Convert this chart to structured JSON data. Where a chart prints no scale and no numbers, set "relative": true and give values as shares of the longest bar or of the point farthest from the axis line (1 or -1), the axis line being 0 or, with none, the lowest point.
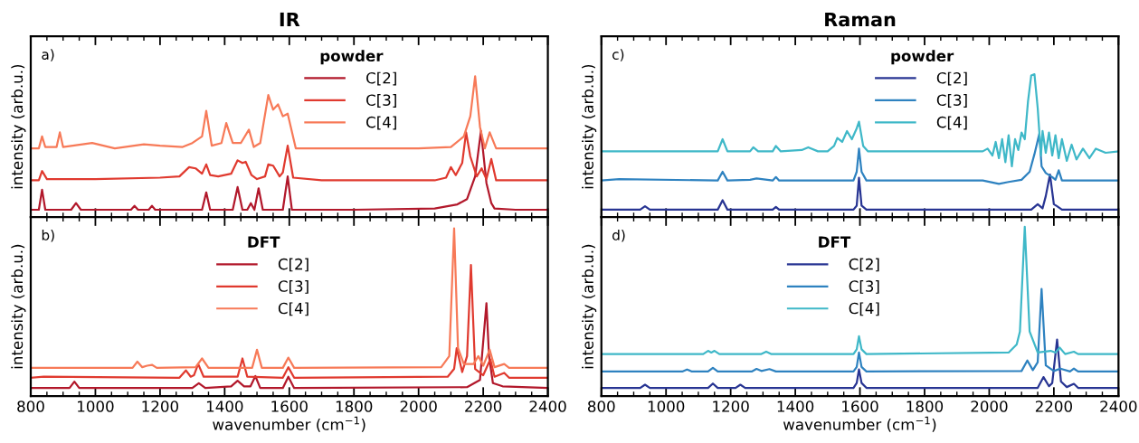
{
  "chart_data": [
    {
      "type": "line",
      "title": "IR",
      "ylabel": "intensity (arb.u.)",
      "relative": true,
      "legend": "top right",
      "legend_title": "powder",
      "annotations": [
        "a)"
      ],
      "xlim": [
        800,
        2400
      ],
      "xticks": [
        800,
        1000,
        1200,
        1400,
        1600,
        1800,
        2000,
        2200,
        2400
      ],
      "tick_labels": false,
      "line_style": "solid",
      "marker": "none",
      "series": [
        {
          "name": "C[2]",
          "color": "#b2182b",
          "x": [
            800,
            825,
            835,
            845,
            925,
            940,
            955,
            1110,
            1121,
            1132,
            1165,
            1175,
            1185,
            1330,
            1343,
            1355,
            1425,
            1440,
            1455,
            1470,
            1481,
            1492,
            1505,
            1518,
            1580,
            1595,
            1608,
            1800,
            2050,
            2120,
            2150,
            2175,
            2193,
            2210,
            2225,
            2235,
            2300,
            2400
          ],
          "values": [
            0.052,
            0.052,
            0.194,
            0.052,
            0.052,
            0.099,
            0.052,
            0.052,
            0.08,
            0.052,
            0.052,
            0.08,
            0.052,
            0.052,
            0.175,
            0.052,
            0.052,
            0.213,
            0.052,
            0.052,
            0.099,
            0.052,
            0.204,
            0.052,
            0.052,
            0.289,
            0.052,
            0.052,
            0.061,
            0.09,
            0.128,
            0.289,
            0.611,
            0.242,
            0.099,
            0.061,
            0.052,
            0.052
          ]
        },
        {
          "name": "C[3]",
          "color": "#e03a2f",
          "x": [
            800,
            825,
            835,
            850,
            1000,
            1200,
            1260,
            1290,
            1310,
            1330,
            1343,
            1355,
            1380,
            1420,
            1440,
            1455,
            1465,
            1483,
            1500,
            1525,
            1535,
            1550,
            1570,
            1580,
            1595,
            1612,
            1700,
            2050,
            2085,
            2100,
            2115,
            2135,
            2147,
            2160,
            2180,
            2195,
            2210,
            2225,
            2240,
            2400
          ],
          "values": [
            0.261,
            0.261,
            0.327,
            0.27,
            0.27,
            0.28,
            0.289,
            0.355,
            0.346,
            0.308,
            0.374,
            0.298,
            0.289,
            0.308,
            0.403,
            0.384,
            0.393,
            0.298,
            0.27,
            0.289,
            0.374,
            0.365,
            0.289,
            0.317,
            0.507,
            0.28,
            0.261,
            0.261,
            0.28,
            0.355,
            0.298,
            0.384,
            0.602,
            0.431,
            0.289,
            0.346,
            0.27,
            0.412,
            0.261,
            0.261
          ]
        },
        {
          "name": "C[4]",
          "color": "#f77a58",
          "x": [
            800,
            825,
            835,
            845,
            880,
            890,
            900,
            990,
            1060,
            1150,
            1200,
            1270,
            1300,
            1330,
            1343,
            1360,
            1390,
            1405,
            1425,
            1450,
            1475,
            1490,
            1510,
            1535,
            1550,
            1565,
            1580,
            1595,
            1620,
            1700,
            2000,
            2100,
            2140,
            2160,
            2175,
            2190,
            2205,
            2220,
            2240,
            2400
          ],
          "values": [
            0.488,
            0.488,
            0.573,
            0.498,
            0.498,
            0.602,
            0.498,
            0.526,
            0.488,
            0.517,
            0.507,
            0.498,
            0.526,
            0.573,
            0.754,
            0.507,
            0.526,
            0.668,
            0.526,
            0.526,
            0.621,
            0.498,
            0.526,
            0.867,
            0.763,
            0.801,
            0.716,
            0.735,
            0.488,
            0.488,
            0.488,
            0.498,
            0.573,
            0.716,
            1.0,
            0.64,
            0.488,
            0.602,
            0.488,
            0.488
          ]
        }
      ]
    },
    {
      "type": "line",
      "xlabel": "wavenumber (cm$^{−1}$)",
      "ylabel": "intensity (arb.u.)",
      "relative": true,
      "legend": "top",
      "legend_title": "DFT",
      "annotations": [
        "b)"
      ],
      "xlim": [
        800,
        2400
      ],
      "xticks": [
        800,
        1000,
        1200,
        1400,
        1600,
        1800,
        2000,
        2200,
        2400
      ],
      "tick_labels": "x",
      "line_style": "solid",
      "marker": "none",
      "series": [
        {
          "name": "C[2]",
          "color": "#b2182b",
          "x": [
            800,
            920,
            935,
            950,
            1300,
            1320,
            1340,
            1420,
            1440,
            1460,
            1480,
            1495,
            1510,
            1580,
            1597,
            1615,
            2150,
            2190,
            2210,
            2218,
            2230,
            2260,
            2400
          ],
          "values": [
            0.048,
            0.048,
            0.086,
            0.048,
            0.048,
            0.077,
            0.048,
            0.058,
            0.091,
            0.058,
            0.058,
            0.119,
            0.048,
            0.048,
            0.115,
            0.048,
            0.053,
            0.096,
            0.553,
            0.238,
            0.077,
            0.058,
            0.048
          ]
        },
        {
          "name": "C[3]",
          "color": "#e03a2f",
          "x": [
            800,
            840,
            1260,
            1280,
            1295,
            1305,
            1318,
            1335,
            1440,
            1455,
            1470,
            1580,
            1597,
            1615,
            2090,
            2110,
            2118,
            2135,
            2150,
            2162,
            2175,
            2200,
            2222,
            2235,
            2265,
            2280,
            2400
          ],
          "values": [
            0.109,
            0.115,
            0.109,
            0.153,
            0.115,
            0.124,
            0.191,
            0.115,
            0.115,
            0.224,
            0.115,
            0.109,
            0.172,
            0.109,
            0.115,
            0.162,
            0.286,
            0.143,
            0.238,
            0.781,
            0.162,
            0.124,
            0.219,
            0.115,
            0.138,
            0.109,
            0.109
          ]
        },
        {
          "name": "C[4]",
          "color": "#f77a58",
          "x": [
            800,
            1115,
            1130,
            1145,
            1160,
            1175,
            1190,
            1310,
            1330,
            1350,
            1485,
            1500,
            1515,
            1580,
            1597,
            1615,
            2070,
            2095,
            2110,
            2122,
            2140,
            2170,
            2185,
            2200,
            2212,
            2220,
            2235,
            2265,
            2280,
            2400
          ],
          "values": [
            0.168,
            0.168,
            0.205,
            0.172,
            0.181,
            0.186,
            0.168,
            0.172,
            0.224,
            0.168,
            0.168,
            0.276,
            0.168,
            0.168,
            0.229,
            0.168,
            0.172,
            0.238,
            1.0,
            0.286,
            0.191,
            0.191,
            0.238,
            0.181,
            0.238,
            0.276,
            0.172,
            0.191,
            0.168,
            0.168
          ]
        }
      ]
    },
    {
      "type": "line",
      "title": "Raman",
      "ylabel": "intensity (arb.u.)",
      "relative": true,
      "legend": "top right",
      "legend_title": "powder",
      "annotations": [
        "c)"
      ],
      "xlim": [
        800,
        2400
      ],
      "xticks": [
        800,
        1000,
        1200,
        1400,
        1600,
        1800,
        2000,
        2200,
        2400
      ],
      "tick_labels": false,
      "line_style": "solid",
      "marker": "none",
      "series": [
        {
          "name": "C[2]",
          "color": "#283593",
          "x": [
            800,
            920,
            935,
            950,
            1160,
            1175,
            1190,
            1330,
            1340,
            1350,
            1580,
            1590,
            1597,
            1605,
            1620,
            2130,
            2150,
            2165,
            2175,
            2188,
            2200,
            2210,
            2225,
            2400
          ],
          "values": [
            0.052,
            0.052,
            0.076,
            0.052,
            0.052,
            0.118,
            0.052,
            0.052,
            0.071,
            0.052,
            0.052,
            0.08,
            0.275,
            0.08,
            0.052,
            0.052,
            0.09,
            0.061,
            0.147,
            0.298,
            0.09,
            0.076,
            0.052,
            0.052
          ]
        },
        {
          "name": "C[3]",
          "color": "#2e82c0",
          "x": [
            800,
            855,
            1160,
            1175,
            1190,
            1260,
            1280,
            1330,
            1340,
            1350,
            1580,
            1590,
            1597,
            1605,
            1620,
            1980,
            2030,
            2060,
            2100,
            2125,
            2140,
            2155,
            2162,
            2175,
            2195,
            2205,
            2215,
            2225,
            2400
          ],
          "values": [
            0.256,
            0.265,
            0.256,
            0.317,
            0.256,
            0.261,
            0.27,
            0.256,
            0.28,
            0.256,
            0.256,
            0.317,
            0.479,
            0.317,
            0.256,
            0.256,
            0.232,
            0.246,
            0.261,
            0.317,
            0.441,
            0.583,
            0.355,
            0.308,
            0.28,
            0.261,
            0.327,
            0.256,
            0.256
          ]
        },
        {
          "name": "C[4]",
          "color": "#3fb8c8",
          "x": [
            800,
            1160,
            1175,
            1190,
            1260,
            1270,
            1285,
            1330,
            1340,
            1355,
            1420,
            1440,
            1470,
            1500,
            1520,
            1530,
            1545,
            1560,
            1575,
            1590,
            1597,
            1610,
            1625,
            1980,
            1995,
            2010,
            2020,
            2030,
            2040,
            2050,
            2060,
            2070,
            2080,
            2090,
            2100,
            2110,
            2120,
            2130,
            2140,
            2150,
            2160,
            2165,
            2175,
            2185,
            2195,
            2205,
            2215,
            2225,
            2240,
            2255,
            2270,
            2290,
            2310,
            2330,
            2360,
            2400
          ],
          "values": [
            0.46,
            0.46,
            0.545,
            0.46,
            0.46,
            0.488,
            0.46,
            0.46,
            0.498,
            0.46,
            0.469,
            0.488,
            0.46,
            0.46,
            0.498,
            0.554,
            0.526,
            0.602,
            0.545,
            0.621,
            0.668,
            0.498,
            0.46,
            0.46,
            0.479,
            0.431,
            0.526,
            0.412,
            0.545,
            0.384,
            0.573,
            0.355,
            0.545,
            0.469,
            0.592,
            0.545,
            0.81,
            0.991,
            1.0,
            0.763,
            0.431,
            0.602,
            0.45,
            0.592,
            0.431,
            0.573,
            0.412,
            0.545,
            0.393,
            0.507,
            0.403,
            0.479,
            0.412,
            0.479,
            0.45,
            0.46
          ]
        }
      ]
    },
    {
      "type": "line",
      "xlabel": "wavenumber (cm$^{−1}$)",
      "ylabel": "intensity (arb.u.)",
      "relative": true,
      "legend": "top",
      "legend_title": "DFT",
      "annotations": [
        "d)"
      ],
      "xlim": [
        800,
        2400
      ],
      "xticks": [
        800,
        1000,
        1200,
        1400,
        1600,
        1800,
        2000,
        2200,
        2400
      ],
      "tick_labels": "x",
      "line_style": "solid",
      "marker": "none",
      "series": [
        {
          "name": "C[2]",
          "color": "#283593",
          "x": [
            800,
            920,
            935,
            950,
            1130,
            1145,
            1160,
            1215,
            1230,
            1245,
            1580,
            1590,
            1597,
            1605,
            1620,
            2150,
            2168,
            2185,
            2195,
            2210,
            2222,
            2240,
            2262,
            2275,
            2400
          ],
          "values": [
            0.048,
            0.048,
            0.067,
            0.048,
            0.048,
            0.074,
            0.048,
            0.048,
            0.067,
            0.048,
            0.048,
            0.077,
            0.157,
            0.077,
            0.048,
            0.048,
            0.112,
            0.058,
            0.077,
            0.334,
            0.086,
            0.053,
            0.072,
            0.048,
            0.048
          ]
        },
        {
          "name": "C[3]",
          "color": "#2e82c0",
          "x": [
            800,
            1050,
            1065,
            1080,
            1130,
            1145,
            1160,
            1265,
            1280,
            1295,
            1320,
            1340,
            1580,
            1590,
            1597,
            1605,
            1620,
            2100,
            2118,
            2135,
            2150,
            2162,
            2175,
            2200,
            2220,
            2250,
            2262,
            2275,
            2400
          ],
          "values": [
            0.145,
            0.145,
            0.157,
            0.145,
            0.145,
            0.167,
            0.145,
            0.145,
            0.16,
            0.148,
            0.159,
            0.145,
            0.145,
            0.172,
            0.257,
            0.172,
            0.145,
            0.148,
            0.21,
            0.153,
            0.2,
            0.633,
            0.181,
            0.148,
            0.162,
            0.145,
            0.162,
            0.145,
            0.145
          ]
        },
        {
          "name": "C[4]",
          "color": "#3fb8c8",
          "x": [
            800,
            1115,
            1130,
            1140,
            1150,
            1165,
            1295,
            1310,
            1325,
            1580,
            1590,
            1597,
            1605,
            1620,
            2060,
            2085,
            2095,
            2110,
            2125,
            2150,
            2190,
            2205,
            2218,
            2235,
            2262,
            2275,
            2400
          ],
          "values": [
            0.248,
            0.248,
            0.267,
            0.257,
            0.267,
            0.248,
            0.248,
            0.262,
            0.248,
            0.248,
            0.276,
            0.353,
            0.276,
            0.248,
            0.257,
            0.305,
            0.381,
            1.0,
            0.381,
            0.257,
            0.267,
            0.257,
            0.286,
            0.248,
            0.262,
            0.248,
            0.248
          ]
        }
      ]
    }
  ]
}
